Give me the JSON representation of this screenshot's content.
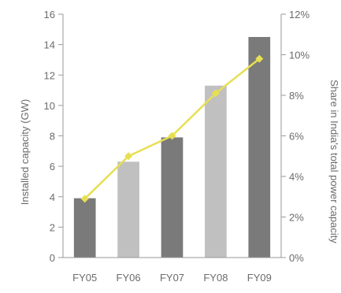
{
  "chart_data": {
    "type": "bar",
    "categories": [
      "FY05",
      "FY06",
      "FY07",
      "FY08",
      "FY09"
    ],
    "series": [
      {
        "name": "Installed capacity (GW)",
        "type": "bar",
        "axis": "left",
        "values": [
          3.9,
          6.3,
          7.9,
          11.3,
          14.5
        ],
        "colors": [
          "#7a7a7a",
          "#c0c0c0",
          "#7a7a7a",
          "#c0c0c0",
          "#7a7a7a"
        ]
      },
      {
        "name": "Share in India's total power capacity",
        "type": "line",
        "axis": "right",
        "values": [
          2.9,
          5.0,
          6.0,
          8.1,
          9.8
        ],
        "color": "#e6df52"
      }
    ],
    "ylabel": "Installed capacity (GW)",
    "ylabel_right": "Share in India's total power capacity",
    "ylim": [
      0,
      16
    ],
    "ylim_right": [
      0,
      12
    ],
    "yticks": [
      "0",
      "2",
      "4",
      "6",
      "8",
      "10",
      "12",
      "14",
      "16"
    ],
    "yticks_right": [
      "0%",
      "2%",
      "4%",
      "6%",
      "8%",
      "10%",
      "12%"
    ],
    "grid": false,
    "legend": "none"
  }
}
